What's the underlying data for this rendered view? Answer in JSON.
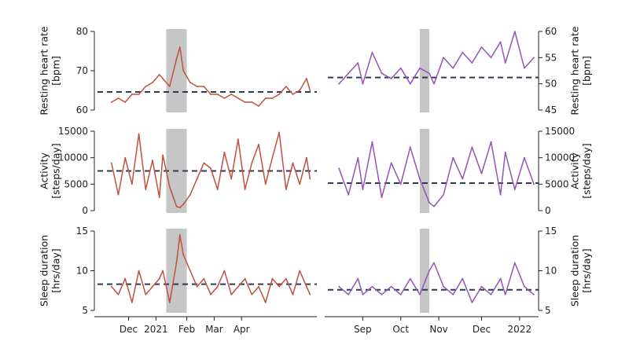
{
  "colors": {
    "left_series": "#c0513f",
    "right_series": "#9553b8",
    "baseline": "#2e3a52",
    "event_band": "#c6c6c6"
  },
  "chart_data": [
    {
      "type": "line",
      "panel": "left-top",
      "ylabel": "Resting heart rate\n[bpm]",
      "y_axis_side": "left",
      "ylim": [
        60,
        80
      ],
      "yticks": [
        60,
        70,
        80
      ],
      "baseline": 64.6,
      "event_band": [
        2021.03,
        2021.09
      ],
      "x": [
        2020.87,
        2020.89,
        2020.91,
        2020.93,
        2020.95,
        2020.97,
        2020.99,
        2021.01,
        2021.02,
        2021.04,
        2021.06,
        2021.07,
        2021.08,
        2021.1,
        2021.12,
        2021.14,
        2021.16,
        2021.18,
        2021.2,
        2021.22,
        2021.24,
        2021.26,
        2021.28,
        2021.3,
        2021.32,
        2021.34,
        2021.36,
        2021.38,
        2021.4,
        2021.42,
        2021.44,
        2021.45
      ],
      "values": [
        62,
        63,
        62,
        64,
        64,
        66,
        67,
        69,
        68,
        66,
        73,
        76,
        70,
        67,
        66,
        66,
        64,
        64,
        63,
        64,
        63,
        62,
        62,
        61,
        63,
        63,
        64,
        66,
        64,
        65,
        68,
        65
      ],
      "xticks": [
        "Dec",
        "2021",
        "Feb",
        "Mar",
        "Apr"
      ],
      "grid": false
    },
    {
      "type": "line",
      "panel": "left-middle",
      "ylabel": "Activity\n[steps/day]",
      "y_axis_side": "left",
      "ylim": [
        0,
        15000
      ],
      "yticks": [
        0,
        5000,
        10000,
        15000
      ],
      "baseline": 7500,
      "event_band": [
        2021.03,
        2021.09
      ],
      "x": [
        2020.87,
        2020.89,
        2020.91,
        2020.93,
        2020.95,
        2020.97,
        2020.99,
        2021.01,
        2021.02,
        2021.04,
        2021.06,
        2021.07,
        2021.08,
        2021.1,
        2021.12,
        2021.14,
        2021.16,
        2021.18,
        2021.2,
        2021.22,
        2021.24,
        2021.26,
        2021.28,
        2021.3,
        2021.32,
        2021.34,
        2021.36,
        2021.38,
        2021.4,
        2021.42,
        2021.44,
        2021.45
      ],
      "values": [
        9000,
        3000,
        10000,
        5000,
        14500,
        4000,
        9500,
        2500,
        10500,
        4500,
        800,
        600,
        1200,
        3000,
        6000,
        9000,
        8000,
        4000,
        11000,
        6000,
        13500,
        4000,
        9000,
        12500,
        5000,
        10000,
        14800,
        4000,
        9000,
        5000,
        10000,
        6000
      ],
      "grid": false
    },
    {
      "type": "line",
      "panel": "left-bottom",
      "ylabel": "Sleep duration\n[hrs/day]",
      "y_axis_side": "left",
      "ylim": [
        5,
        15
      ],
      "yticks": [
        5,
        10,
        15
      ],
      "baseline": 8.3,
      "event_band": [
        2021.03,
        2021.09
      ],
      "x": [
        2020.87,
        2020.89,
        2020.91,
        2020.93,
        2020.95,
        2020.97,
        2020.99,
        2021.01,
        2021.02,
        2021.04,
        2021.06,
        2021.07,
        2021.08,
        2021.1,
        2021.12,
        2021.14,
        2021.16,
        2021.18,
        2021.2,
        2021.22,
        2021.24,
        2021.26,
        2021.28,
        2021.3,
        2021.32,
        2021.34,
        2021.36,
        2021.38,
        2021.4,
        2021.42,
        2021.44,
        2021.45
      ],
      "values": [
        8,
        7,
        9,
        6,
        10,
        7,
        8,
        9,
        10,
        6,
        11,
        14.5,
        12,
        10,
        8,
        9,
        7,
        8,
        10,
        7,
        8,
        9,
        7,
        8,
        6,
        9,
        8,
        9,
        7,
        10,
        8,
        7
      ],
      "grid": false
    },
    {
      "type": "line",
      "panel": "right-top",
      "ylabel": "Resting heart rate\n[bpm]",
      "y_axis_side": "right",
      "ylim": [
        45,
        60
      ],
      "yticks": [
        45,
        50,
        55,
        60
      ],
      "baseline": 51.2,
      "event_band": [
        2021.79,
        2021.81
      ],
      "x": [
        2021.62,
        2021.64,
        2021.66,
        2021.67,
        2021.69,
        2021.71,
        2021.73,
        2021.75,
        2021.77,
        2021.79,
        2021.81,
        2021.82,
        2021.84,
        2021.86,
        2021.88,
        2021.9,
        2021.92,
        2021.94,
        2021.96,
        2021.97,
        2021.99,
        2022.01,
        2022.03
      ],
      "values": [
        50,
        52,
        54,
        50,
        56,
        52,
        51,
        53,
        50,
        53,
        52,
        50,
        55,
        53,
        56,
        54,
        57,
        55,
        58,
        54,
        60,
        53,
        55
      ],
      "xticks": [
        "Sep",
        "Oct",
        "Nov",
        "Dec",
        "2022"
      ],
      "grid": false
    },
    {
      "type": "line",
      "panel": "right-middle",
      "ylabel": "Activity\n[steps/day]",
      "y_axis_side": "right",
      "ylim": [
        0,
        15000
      ],
      "yticks": [
        0,
        5000,
        10000,
        15000
      ],
      "baseline": 5200,
      "event_band": [
        2021.79,
        2021.81
      ],
      "x": [
        2021.62,
        2021.64,
        2021.66,
        2021.67,
        2021.69,
        2021.71,
        2021.73,
        2021.75,
        2021.77,
        2021.79,
        2021.81,
        2021.82,
        2021.84,
        2021.86,
        2021.88,
        2021.9,
        2021.92,
        2021.94,
        2021.96,
        2021.97,
        2021.99,
        2022.01,
        2022.03
      ],
      "values": [
        8000,
        3000,
        10000,
        4000,
        13000,
        2500,
        9000,
        5000,
        12000,
        6000,
        1500,
        800,
        3000,
        10000,
        6000,
        12000,
        7000,
        13000,
        3000,
        11000,
        4000,
        10000,
        5000
      ],
      "grid": false
    },
    {
      "type": "line",
      "panel": "right-bottom",
      "ylabel": "Sleep duration\n[hrs/day]",
      "y_axis_side": "right",
      "ylim": [
        5,
        15
      ],
      "yticks": [
        5,
        10,
        15
      ],
      "baseline": 7.6,
      "event_band": [
        2021.79,
        2021.81
      ],
      "x": [
        2021.62,
        2021.64,
        2021.66,
        2021.67,
        2021.69,
        2021.71,
        2021.73,
        2021.75,
        2021.77,
        2021.79,
        2021.81,
        2021.82,
        2021.84,
        2021.86,
        2021.88,
        2021.9,
        2021.92,
        2021.94,
        2021.96,
        2021.97,
        2021.99,
        2022.01,
        2022.03
      ],
      "values": [
        8,
        7,
        9,
        7,
        8,
        7,
        8,
        7,
        9,
        7,
        10,
        11,
        8,
        7,
        9,
        6,
        8,
        7,
        9,
        7,
        11,
        8,
        7
      ],
      "grid": false
    }
  ]
}
